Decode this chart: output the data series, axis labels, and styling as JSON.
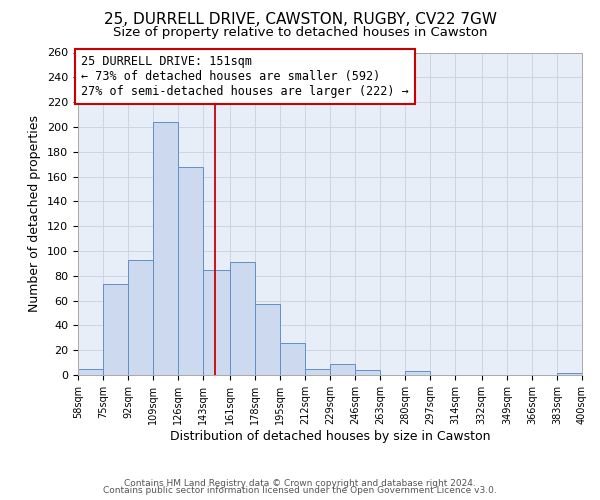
{
  "title": "25, DURRELL DRIVE, CAWSTON, RUGBY, CV22 7GW",
  "subtitle": "Size of property relative to detached houses in Cawston",
  "xlabel": "Distribution of detached houses by size in Cawston",
  "ylabel": "Number of detached properties",
  "bar_edges": [
    58,
    75,
    92,
    109,
    126,
    143,
    161,
    178,
    195,
    212,
    229,
    246,
    263,
    280,
    297,
    314,
    332,
    349,
    366,
    383,
    400
  ],
  "bar_values": [
    5,
    73,
    93,
    204,
    168,
    85,
    91,
    57,
    26,
    5,
    9,
    4,
    0,
    3,
    0,
    0,
    0,
    0,
    0,
    2
  ],
  "bar_color": "#ccd9ee",
  "bar_edge_color": "#6090c8",
  "vline_x": 151,
  "vline_color": "#cc0000",
  "ylim": [
    0,
    260
  ],
  "annotation_text": "25 DURRELL DRIVE: 151sqm\n← 73% of detached houses are smaller (592)\n27% of semi-detached houses are larger (222) →",
  "annotation_box_edge_color": "#cc0000",
  "annotation_box_face_color": "white",
  "annotation_fontsize": 8.5,
  "title_fontsize": 11,
  "subtitle_fontsize": 9.5,
  "xlabel_fontsize": 9,
  "ylabel_fontsize": 9,
  "footer_line1": "Contains HM Land Registry data © Crown copyright and database right 2024.",
  "footer_line2": "Contains public sector information licensed under the Open Government Licence v3.0.",
  "grid_color": "#c8d0e0",
  "background_color": "#e8eef8",
  "yticks": [
    0,
    20,
    40,
    60,
    80,
    100,
    120,
    140,
    160,
    180,
    200,
    220,
    240,
    260
  ]
}
